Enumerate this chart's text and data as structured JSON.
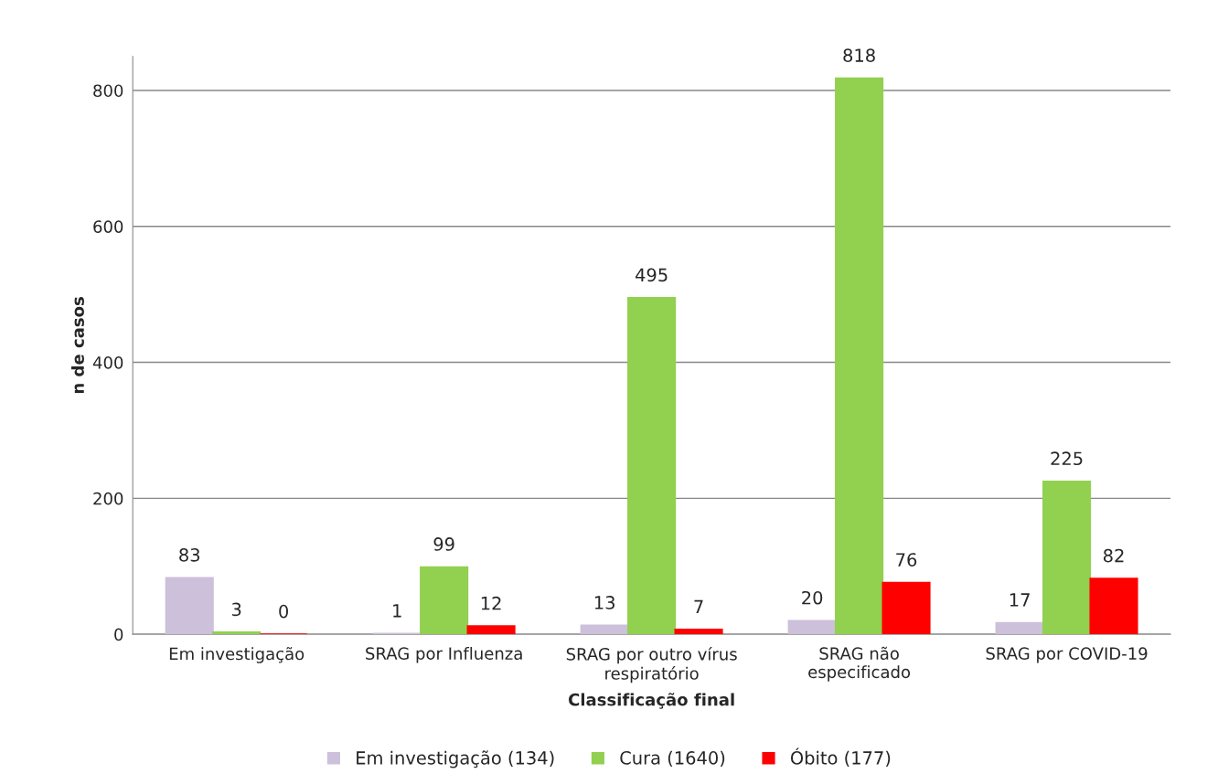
{
  "chart_data": {
    "type": "bar",
    "xlabel": "Classificação final",
    "ylabel": "n de casos",
    "categories": [
      "Em investigação",
      "SRAG por Influenza",
      "SRAG por outro vírus\nrespiratório",
      "SRAG não\nespecificado",
      "SRAG por COVID-19"
    ],
    "series": [
      {
        "name": "Em investigação (134)",
        "color": "#ccc0da",
        "values": [
          83,
          1,
          13,
          20,
          17
        ]
      },
      {
        "name": "Cura (1640)",
        "color": "#92d050",
        "values": [
          3,
          99,
          495,
          818,
          225
        ]
      },
      {
        "name": "Óbito (177)",
        "color": "#ff0000",
        "values": [
          0,
          12,
          7,
          76,
          82
        ]
      }
    ],
    "ylim": [
      0,
      850
    ],
    "yticks": [
      0,
      200,
      400,
      600,
      800
    ],
    "grid": "y",
    "legend": "bottom",
    "data_labels": true
  }
}
